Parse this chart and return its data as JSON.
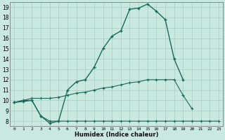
{
  "xlabel": "Humidex (Indice chaleur)",
  "background_color": "#c8e8e0",
  "grid_color": "#a8ccc4",
  "line_color": "#1a6a5a",
  "x_values": [
    0,
    1,
    2,
    3,
    4,
    5,
    6,
    7,
    8,
    9,
    10,
    11,
    12,
    13,
    14,
    15,
    16,
    17,
    18,
    19,
    20,
    21,
    22,
    23
  ],
  "series_main": [
    9.8,
    9.9,
    10.0,
    8.5,
    7.8,
    8.0,
    11.0,
    11.8,
    12.0,
    13.2,
    15.0,
    16.2,
    16.7,
    18.8,
    18.9,
    19.3,
    18.6,
    17.8,
    14.0,
    12.0,
    null,
    null,
    null,
    null
  ],
  "series_low": [
    9.8,
    10.0,
    10.0,
    8.5,
    8.0,
    8.0,
    8.0,
    8.0,
    8.0,
    8.0,
    8.0,
    8.0,
    8.0,
    8.0,
    8.0,
    8.0,
    8.0,
    8.0,
    8.0,
    8.0,
    8.0,
    8.0,
    8.0,
    8.0
  ],
  "series_mid": [
    9.8,
    10.0,
    10.2,
    10.2,
    10.2,
    10.3,
    10.5,
    10.7,
    10.8,
    11.0,
    11.2,
    11.3,
    11.5,
    11.7,
    11.8,
    12.0,
    12.0,
    12.0,
    12.0,
    10.5,
    9.2,
    null,
    null,
    null
  ],
  "ylim_min": 8,
  "ylim_max": 19,
  "xlim_min": 0,
  "xlim_max": 23,
  "yticks": [
    8,
    9,
    10,
    11,
    12,
    13,
    14,
    15,
    16,
    17,
    18,
    19
  ],
  "xtick_labels": [
    "0",
    "1",
    "2",
    "3",
    "4",
    "5",
    "6",
    "7",
    "8",
    "9",
    "10",
    "11",
    "12",
    "13",
    "14",
    "15",
    "16",
    "17",
    "18",
    "19",
    "20",
    "21",
    "22",
    "23"
  ]
}
